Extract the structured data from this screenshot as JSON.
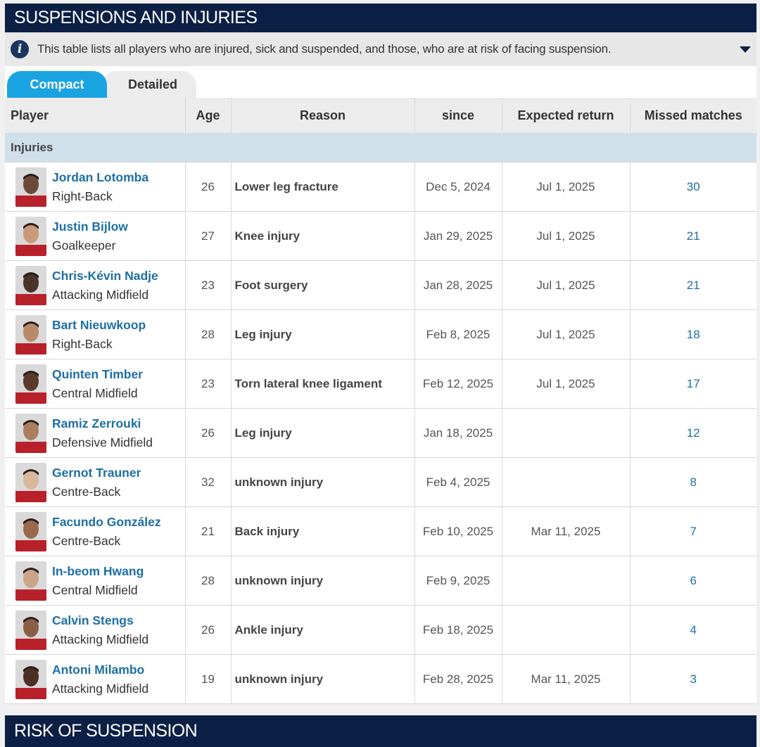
{
  "section": {
    "title": "SUSPENSIONS AND INJURIES",
    "info_text": "This table lists all players who are injured, sick and suspended, and those, who are at risk of facing suspension.",
    "info_icon": "info-icon",
    "caret_icon": "chevron-down-icon"
  },
  "tabs": [
    "Compact",
    "Detailed"
  ],
  "table": {
    "columns": [
      "Player",
      "Age",
      "Reason",
      "since",
      "Expected return",
      "Missed matches"
    ],
    "group_label": "Injuries",
    "rows": [
      {
        "name": "Jordan Lotomba",
        "position": "Right-Back",
        "age": "26",
        "reason": "Lower leg fracture",
        "since": "Dec 5, 2024",
        "return": "Jul 1, 2025",
        "missed": "30"
      },
      {
        "name": "Justin Bijlow",
        "position": "Goalkeeper",
        "age": "27",
        "reason": "Knee injury",
        "since": "Jan 29, 2025",
        "return": "Jul 1, 2025",
        "missed": "21"
      },
      {
        "name": "Chris-Kévin Nadje",
        "position": "Attacking Midfield",
        "age": "23",
        "reason": "Foot surgery",
        "since": "Jan 28, 2025",
        "return": "Jul 1, 2025",
        "missed": "21"
      },
      {
        "name": "Bart Nieuwkoop",
        "position": "Right-Back",
        "age": "28",
        "reason": "Leg injury",
        "since": "Feb 8, 2025",
        "return": "Jul 1, 2025",
        "missed": "18"
      },
      {
        "name": "Quinten Timber",
        "position": "Central Midfield",
        "age": "23",
        "reason": "Torn lateral knee ligament",
        "since": "Feb 12, 2025",
        "return": "Jul 1, 2025",
        "missed": "17"
      },
      {
        "name": "Ramiz Zerrouki",
        "position": "Defensive Midfield",
        "age": "26",
        "reason": "Leg injury",
        "since": "Jan 18, 2025",
        "return": "",
        "missed": "12"
      },
      {
        "name": "Gernot Trauner",
        "position": "Centre-Back",
        "age": "32",
        "reason": "unknown injury",
        "since": "Feb 4, 2025",
        "return": "",
        "missed": "8"
      },
      {
        "name": "Facundo González",
        "position": "Centre-Back",
        "age": "21",
        "reason": "Back injury",
        "since": "Feb 10, 2025",
        "return": "Mar 11, 2025",
        "missed": "7"
      },
      {
        "name": "In-beom Hwang",
        "position": "Central Midfield",
        "age": "28",
        "reason": "unknown injury",
        "since": "Feb 9, 2025",
        "return": "",
        "missed": "6"
      },
      {
        "name": "Calvin Stengs",
        "position": "Attacking Midfield",
        "age": "26",
        "reason": "Ankle injury",
        "since": "Feb 18, 2025",
        "return": "",
        "missed": "4"
      },
      {
        "name": "Antoni Milambo",
        "position": "Attacking Midfield",
        "age": "19",
        "reason": "unknown injury",
        "since": "Feb 28, 2025",
        "return": "Mar 11, 2025",
        "missed": "3"
      }
    ]
  },
  "next_section": {
    "title": "RISK OF SUSPENSION"
  },
  "colors": {
    "header_bg": "#0c1f45",
    "tab_active": "#1aa3e1",
    "link": "#1d6fa5",
    "group_bg": "#cfe0ea"
  }
}
